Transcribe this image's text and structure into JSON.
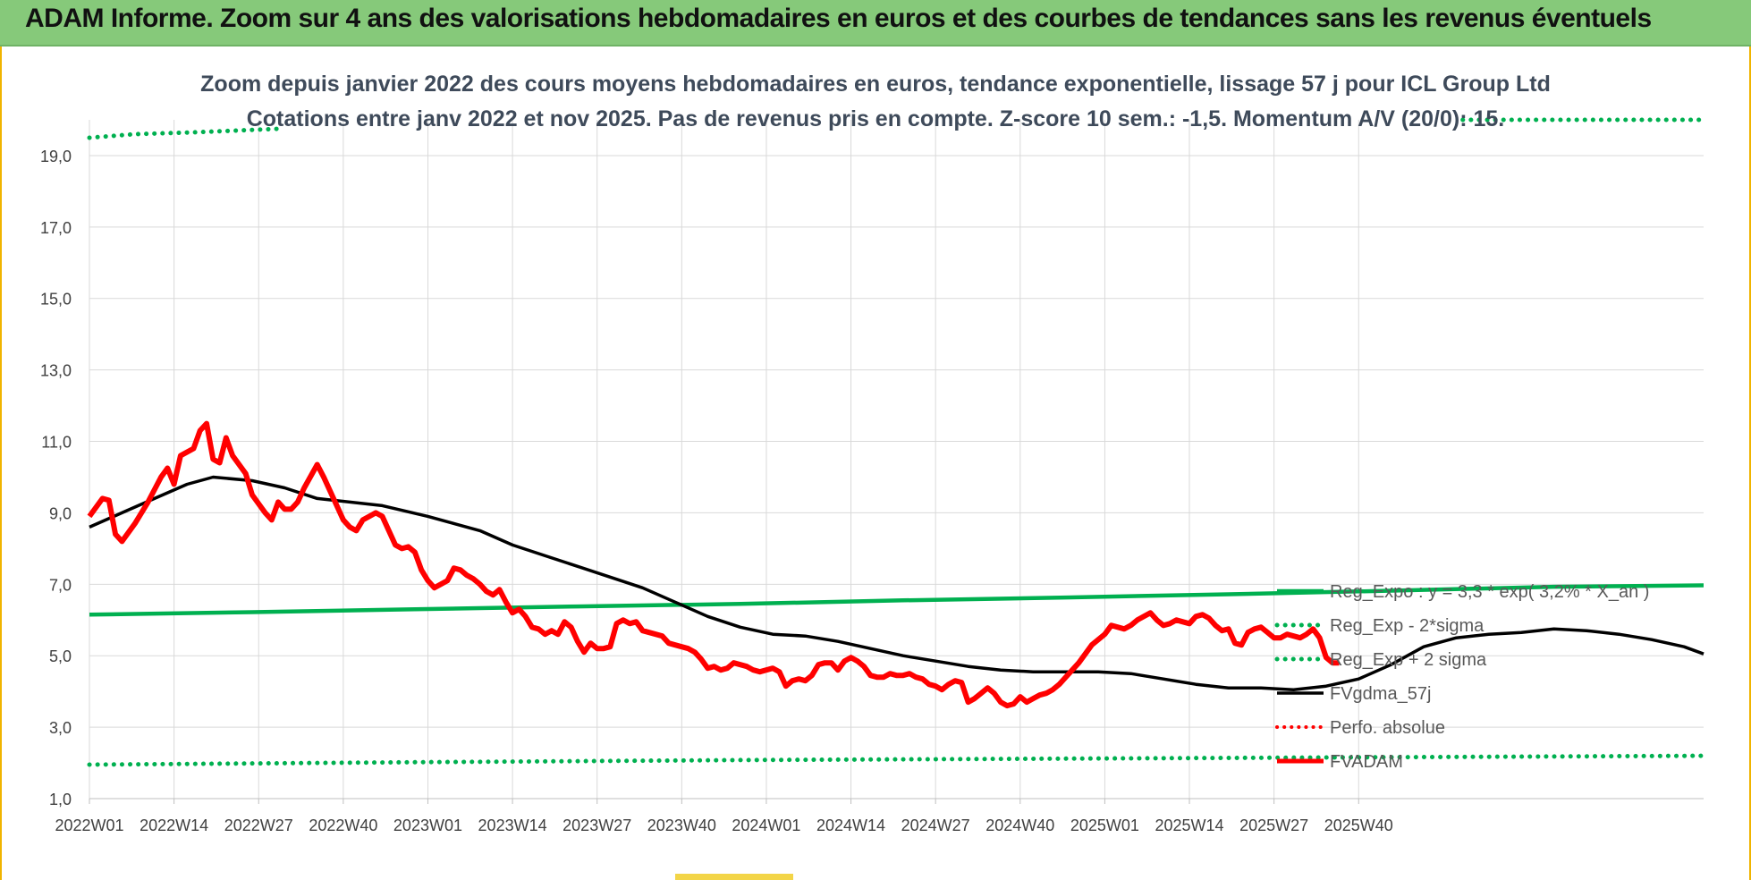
{
  "banner_title": "ADAM Informe. Zoom sur 4 ans des valorisations hebdomadaires en euros et des courbes de tendances sans les revenus éventuels",
  "colors": {
    "banner": "#86c97a",
    "frame": "#f0b400",
    "regression": "#00b050",
    "trend": "#000000",
    "price": "#ff0000",
    "perf": "#ff0000"
  },
  "chart_data": {
    "type": "line",
    "title": "Zoom depuis janvier 2022 des cours moyens hebdomadaires en euros, tendance exponentielle, lissage 57 j pour ICL Group Ltd",
    "subtitle": "Cotations entre janv 2022 et nov 2025. Pas de revenus pris en compte. Z-score 10 sem.: -1,5. Momentum A/V (20/0): 15.",
    "x_tick_labels": [
      "2022W01",
      "2022W14",
      "2022W27",
      "2022W40",
      "2023W01",
      "2023W14",
      "2023W27",
      "2023W40",
      "2024W01",
      "2024W14",
      "2024W27",
      "2024W40",
      "2025W01",
      "2025W14",
      "2025W27",
      "2025W40"
    ],
    "x_unit": "week index from 2022W01",
    "y_ticks": [
      "1,0",
      "3,0",
      "5,0",
      "7,0",
      "9,0",
      "11,0",
      "13,0",
      "15,0",
      "17,0",
      "19,0"
    ],
    "ylim": [
      1,
      20
    ],
    "grid": true,
    "legend_position": "right",
    "series": [
      {
        "name": "Reg_Expo : y = 3,3 * exp( 3,2% * X_an )",
        "style": "solid-green-thick",
        "points": [
          [
            0,
            6.15
          ],
          [
            25,
            6.22
          ],
          [
            50,
            6.3
          ],
          [
            75,
            6.38
          ],
          [
            100,
            6.45
          ],
          [
            125,
            6.55
          ],
          [
            150,
            6.63
          ],
          [
            175,
            6.72
          ],
          [
            200,
            6.82
          ],
          [
            225,
            6.93
          ],
          [
            248,
            6.97
          ]
        ]
      },
      {
        "name": "Reg_Exp - 2*sigma",
        "style": "dotted-green",
        "points": [
          [
            0,
            1.95
          ],
          [
            50,
            2.02
          ],
          [
            100,
            2.08
          ],
          [
            150,
            2.12
          ],
          [
            200,
            2.16
          ],
          [
            248,
            2.2
          ]
        ]
      },
      {
        "name": "Reg_Exp + 2 sigma",
        "style": "dotted-green",
        "points": [
          [
            0,
            19.5
          ],
          [
            7,
            19.6
          ],
          [
            16,
            19.65
          ],
          [
            29,
            19.75
          ],
          [
            211,
            20.0
          ],
          [
            248,
            20.0
          ]
        ]
      },
      {
        "name": "FVgdma_57j",
        "style": "solid-black",
        "points": [
          [
            0,
            8.6
          ],
          [
            5,
            9.0
          ],
          [
            10,
            9.4
          ],
          [
            15,
            9.8
          ],
          [
            19,
            10.0
          ],
          [
            25,
            9.9
          ],
          [
            30,
            9.7
          ],
          [
            35,
            9.4
          ],
          [
            45,
            9.2
          ],
          [
            52,
            8.9
          ],
          [
            60,
            8.5
          ],
          [
            65,
            8.1
          ],
          [
            70,
            7.8
          ],
          [
            75,
            7.5
          ],
          [
            80,
            7.2
          ],
          [
            85,
            6.9
          ],
          [
            90,
            6.5
          ],
          [
            95,
            6.1
          ],
          [
            100,
            5.8
          ],
          [
            105,
            5.6
          ],
          [
            110,
            5.55
          ],
          [
            115,
            5.4
          ],
          [
            120,
            5.2
          ],
          [
            125,
            5.0
          ],
          [
            130,
            4.85
          ],
          [
            135,
            4.7
          ],
          [
            140,
            4.6
          ],
          [
            145,
            4.55
          ],
          [
            150,
            4.55
          ],
          [
            155,
            4.55
          ],
          [
            160,
            4.5
          ],
          [
            165,
            4.35
          ],
          [
            170,
            4.2
          ],
          [
            175,
            4.1
          ],
          [
            180,
            4.1
          ],
          [
            185,
            4.05
          ],
          [
            190,
            4.15
          ],
          [
            195,
            4.35
          ],
          [
            200,
            4.75
          ],
          [
            205,
            5.25
          ],
          [
            210,
            5.5
          ],
          [
            215,
            5.6
          ],
          [
            220,
            5.65
          ],
          [
            225,
            5.75
          ],
          [
            230,
            5.7
          ],
          [
            235,
            5.6
          ],
          [
            240,
            5.45
          ],
          [
            245,
            5.25
          ],
          [
            248,
            5.05
          ]
        ]
      },
      {
        "name": "Perfo. absolue",
        "style": "dotted-red",
        "points": []
      },
      {
        "name": "FVADAM",
        "style": "solid-red-thick",
        "points": [
          [
            0,
            8.9
          ],
          [
            2,
            9.4
          ],
          [
            3,
            9.35
          ],
          [
            4,
            8.4
          ],
          [
            5,
            8.2
          ],
          [
            7,
            8.7
          ],
          [
            9,
            9.3
          ],
          [
            11,
            10.0
          ],
          [
            12,
            10.25
          ],
          [
            13,
            9.8
          ],
          [
            14,
            10.6
          ],
          [
            16,
            10.8
          ],
          [
            17,
            11.3
          ],
          [
            18,
            11.5
          ],
          [
            19,
            10.5
          ],
          [
            20,
            10.4
          ],
          [
            21,
            11.1
          ],
          [
            22,
            10.6
          ],
          [
            24,
            10.1
          ],
          [
            25,
            9.5
          ],
          [
            27,
            9.0
          ],
          [
            28,
            8.8
          ],
          [
            29,
            9.3
          ],
          [
            30,
            9.1
          ],
          [
            31,
            9.1
          ],
          [
            32,
            9.3
          ],
          [
            33,
            9.7
          ],
          [
            35,
            10.35
          ],
          [
            36,
            10.0
          ],
          [
            38,
            9.2
          ],
          [
            39,
            8.8
          ],
          [
            40,
            8.6
          ],
          [
            41,
            8.5
          ],
          [
            42,
            8.8
          ],
          [
            43,
            8.9
          ],
          [
            44,
            9.0
          ],
          [
            45,
            8.9
          ],
          [
            46,
            8.5
          ],
          [
            47,
            8.1
          ],
          [
            48,
            8.0
          ],
          [
            49,
            8.05
          ],
          [
            50,
            7.9
          ],
          [
            51,
            7.4
          ],
          [
            52,
            7.1
          ],
          [
            53,
            6.9
          ],
          [
            54,
            7.0
          ],
          [
            55,
            7.1
          ],
          [
            56,
            7.45
          ],
          [
            57,
            7.4
          ],
          [
            58,
            7.25
          ],
          [
            59,
            7.15
          ],
          [
            60,
            7.0
          ],
          [
            61,
            6.8
          ],
          [
            62,
            6.7
          ],
          [
            63,
            6.85
          ],
          [
            64,
            6.5
          ],
          [
            65,
            6.2
          ],
          [
            66,
            6.3
          ],
          [
            67,
            6.1
          ],
          [
            68,
            5.8
          ],
          [
            69,
            5.75
          ],
          [
            70,
            5.6
          ],
          [
            71,
            5.7
          ],
          [
            72,
            5.6
          ],
          [
            73,
            5.95
          ],
          [
            74,
            5.8
          ],
          [
            75,
            5.4
          ],
          [
            76,
            5.1
          ],
          [
            77,
            5.35
          ],
          [
            78,
            5.2
          ],
          [
            79,
            5.2
          ],
          [
            80,
            5.25
          ],
          [
            81,
            5.9
          ],
          [
            82,
            6.0
          ],
          [
            83,
            5.9
          ],
          [
            84,
            5.95
          ],
          [
            85,
            5.7
          ],
          [
            86,
            5.65
          ],
          [
            87,
            5.6
          ],
          [
            88,
            5.55
          ],
          [
            89,
            5.35
          ],
          [
            90,
            5.3
          ],
          [
            91,
            5.25
          ],
          [
            92,
            5.2
          ],
          [
            93,
            5.1
          ],
          [
            94,
            4.9
          ],
          [
            95,
            4.65
          ],
          [
            96,
            4.7
          ],
          [
            97,
            4.6
          ],
          [
            98,
            4.65
          ],
          [
            99,
            4.8
          ],
          [
            100,
            4.75
          ],
          [
            101,
            4.7
          ],
          [
            102,
            4.6
          ],
          [
            103,
            4.55
          ],
          [
            104,
            4.6
          ],
          [
            105,
            4.65
          ],
          [
            106,
            4.55
          ],
          [
            107,
            4.15
          ],
          [
            108,
            4.3
          ],
          [
            109,
            4.35
          ],
          [
            110,
            4.3
          ],
          [
            111,
            4.45
          ],
          [
            112,
            4.75
          ],
          [
            113,
            4.8
          ],
          [
            114,
            4.8
          ],
          [
            115,
            4.6
          ],
          [
            116,
            4.85
          ],
          [
            117,
            4.95
          ],
          [
            118,
            4.85
          ],
          [
            119,
            4.7
          ],
          [
            120,
            4.45
          ],
          [
            121,
            4.4
          ],
          [
            122,
            4.4
          ],
          [
            123,
            4.5
          ],
          [
            124,
            4.45
          ],
          [
            125,
            4.45
          ],
          [
            126,
            4.5
          ],
          [
            127,
            4.4
          ],
          [
            128,
            4.35
          ],
          [
            129,
            4.2
          ],
          [
            130,
            4.15
          ],
          [
            131,
            4.05
          ],
          [
            132,
            4.2
          ],
          [
            133,
            4.3
          ],
          [
            134,
            4.25
          ],
          [
            135,
            3.7
          ],
          [
            136,
            3.8
          ],
          [
            137,
            3.95
          ],
          [
            138,
            4.1
          ],
          [
            139,
            3.95
          ],
          [
            140,
            3.7
          ],
          [
            141,
            3.6
          ],
          [
            142,
            3.65
          ],
          [
            143,
            3.85
          ],
          [
            144,
            3.7
          ],
          [
            145,
            3.8
          ],
          [
            146,
            3.9
          ],
          [
            147,
            3.95
          ],
          [
            148,
            4.05
          ],
          [
            149,
            4.2
          ],
          [
            150,
            4.4
          ],
          [
            151,
            4.6
          ],
          [
            152,
            4.8
          ],
          [
            153,
            5.05
          ],
          [
            154,
            5.3
          ],
          [
            155,
            5.45
          ],
          [
            156,
            5.6
          ],
          [
            157,
            5.85
          ],
          [
            158,
            5.8
          ],
          [
            159,
            5.75
          ],
          [
            160,
            5.85
          ],
          [
            161,
            6.0
          ],
          [
            162,
            6.1
          ],
          [
            163,
            6.2
          ],
          [
            164,
            6.0
          ],
          [
            165,
            5.85
          ],
          [
            166,
            5.9
          ],
          [
            167,
            6.0
          ],
          [
            168,
            5.95
          ],
          [
            169,
            5.9
          ],
          [
            170,
            6.1
          ],
          [
            171,
            6.15
          ],
          [
            172,
            6.05
          ],
          [
            173,
            5.85
          ],
          [
            174,
            5.7
          ],
          [
            175,
            5.75
          ],
          [
            176,
            5.35
          ],
          [
            177,
            5.3
          ],
          [
            178,
            5.65
          ],
          [
            179,
            5.75
          ],
          [
            180,
            5.8
          ],
          [
            181,
            5.65
          ],
          [
            182,
            5.5
          ],
          [
            183,
            5.5
          ],
          [
            184,
            5.6
          ],
          [
            185,
            5.55
          ],
          [
            186,
            5.5
          ],
          [
            187,
            5.6
          ],
          [
            188,
            5.75
          ],
          [
            189,
            5.5
          ],
          [
            190,
            4.95
          ],
          [
            191,
            4.8
          ],
          [
            192,
            4.8
          ]
        ]
      }
    ]
  }
}
